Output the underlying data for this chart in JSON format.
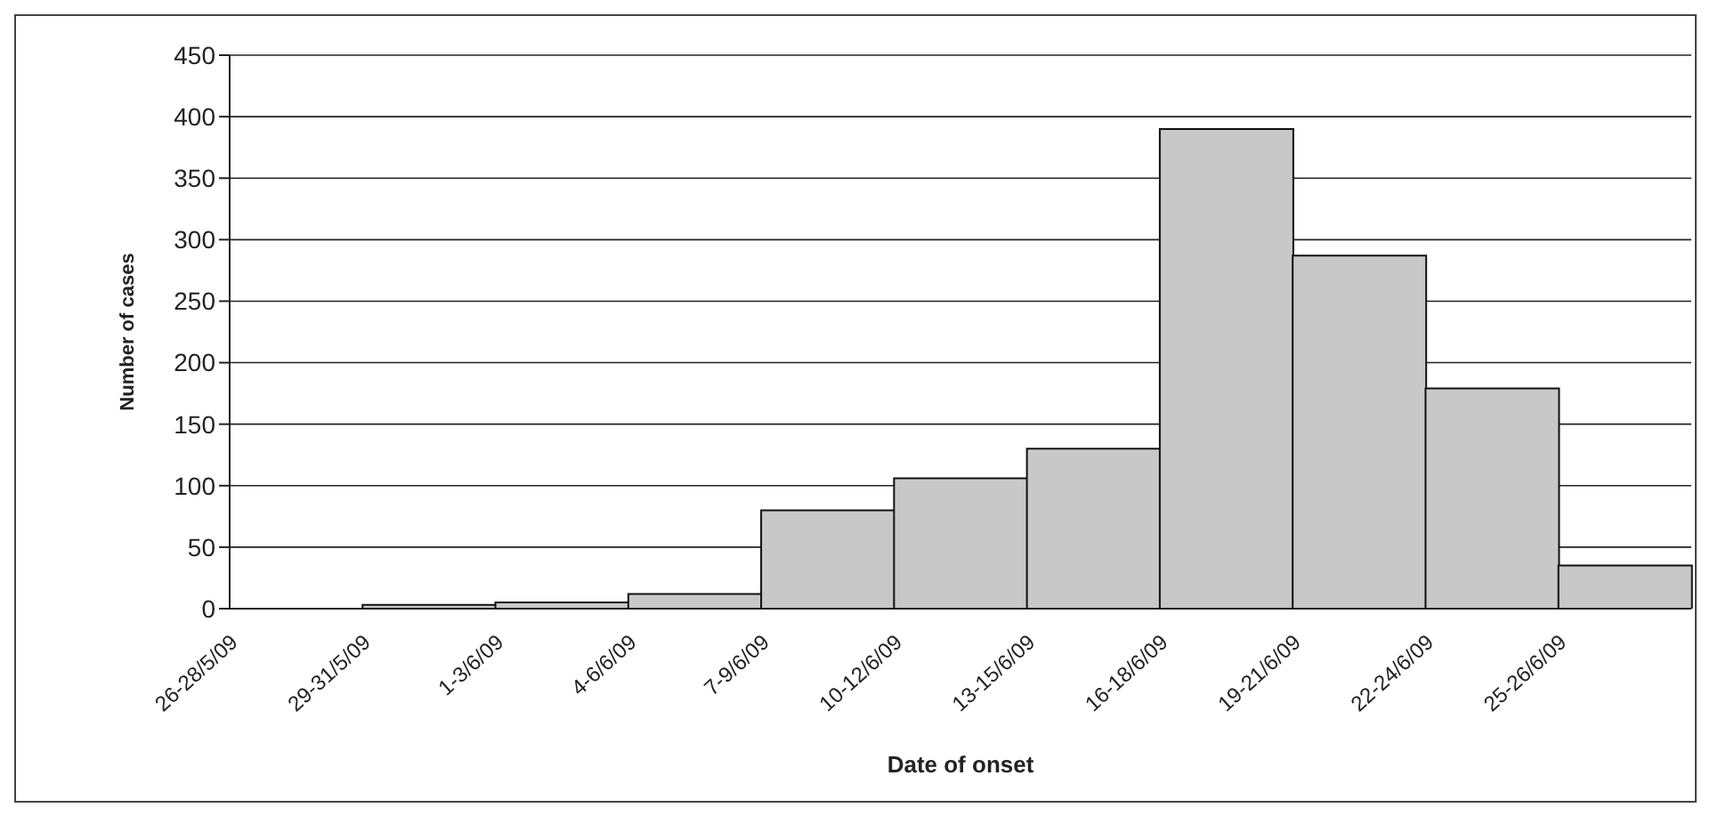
{
  "chart_data": {
    "type": "bar",
    "xlabel": "Date of onset",
    "ylabel": "Number of cases",
    "categories": [
      "26-28/5/09",
      "29-31/5/09",
      "1-3/6/09",
      "4-6/6/09",
      "7-9/6/09",
      "10-12/6/09",
      "13-15/6/09",
      "16-18/6/09",
      "19-21/6/09",
      "22-24/6/09",
      "25-26/6/09"
    ],
    "values": [
      0,
      3,
      5,
      12,
      80,
      106,
      130,
      390,
      287,
      179,
      35
    ],
    "color": "#c8c8c8",
    "ylim": [
      0,
      450
    ],
    "yticks": [
      0,
      50,
      100,
      150,
      200,
      250,
      300,
      350,
      400,
      450
    ],
    "grid": "y",
    "legend": false
  }
}
